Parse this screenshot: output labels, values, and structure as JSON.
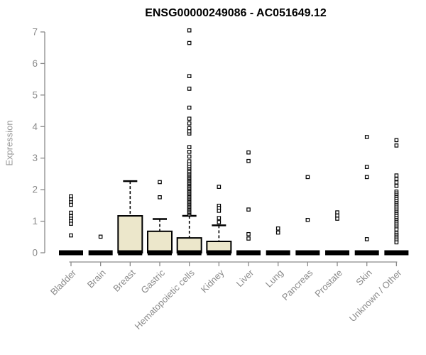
{
  "chart_data": {
    "type": "boxplot",
    "title": "ENSG00000249086 - AC051649.12",
    "ylabel": "Expression",
    "ylim": [
      0,
      7.3
    ],
    "yticks": [
      0,
      1,
      2,
      3,
      4,
      5,
      6,
      7
    ],
    "grid": false,
    "legend": "none",
    "categories": [
      "Bladder",
      "Brain",
      "Breast",
      "Gastric",
      "Hematopoietic cells",
      "Kidney",
      "Liver",
      "Lung",
      "Pancreas",
      "Prostate",
      "Skin",
      "Unknown / Other"
    ],
    "boxes": [
      {
        "category": "Bladder",
        "q1": 0,
        "median": 0,
        "q3": 0,
        "whisker_low": 0,
        "whisker_high": 0,
        "outliers": [
          1.79,
          1.69,
          1.6,
          1.52,
          1.27,
          1.16,
          1.08,
          1.0,
          0.92,
          0.55
        ]
      },
      {
        "category": "Brain",
        "q1": 0,
        "median": 0,
        "q3": 0,
        "whisker_low": 0,
        "whisker_high": 0,
        "outliers": [
          0.51
        ]
      },
      {
        "category": "Breast",
        "q1": 0,
        "median": 0,
        "q3": 1.17,
        "whisker_low": 0,
        "whisker_high": 2.27,
        "outliers": []
      },
      {
        "category": "Gastric",
        "q1": 0,
        "median": 0,
        "q3": 0.68,
        "whisker_low": 0,
        "whisker_high": 1.07,
        "outliers": [
          2.24,
          1.76
        ]
      },
      {
        "category": "Hematopoietic cells",
        "q1": 0,
        "median": 0,
        "q3": 0.47,
        "whisker_low": 0,
        "whisker_high": 1.17,
        "outliers": [
          1.22,
          1.26,
          1.3,
          1.34,
          1.38,
          1.42,
          1.46,
          1.5,
          1.54,
          1.58,
          1.62,
          1.66,
          1.7,
          1.74,
          1.78,
          1.82,
          1.86,
          1.9,
          1.94,
          1.98,
          2.02,
          2.06,
          2.1,
          2.14,
          2.18,
          2.22,
          2.26,
          2.3,
          2.34,
          2.38,
          2.42,
          2.46,
          2.5,
          2.55,
          2.6,
          2.65,
          2.7,
          2.76,
          2.82,
          2.9,
          3.05,
          3.2,
          3.35,
          3.78,
          3.85,
          3.95,
          4.1,
          4.25,
          4.6,
          5.2,
          5.6,
          6.65,
          7.05
        ]
      },
      {
        "category": "Kidney",
        "q1": 0,
        "median": 0,
        "q3": 0.36,
        "whisker_low": 0,
        "whisker_high": 0.87,
        "outliers": [
          2.09,
          1.49,
          1.42,
          1.33,
          1.1,
          0.97
        ]
      },
      {
        "category": "Liver",
        "q1": 0,
        "median": 0,
        "q3": 0,
        "whisker_low": 0,
        "whisker_high": 0,
        "outliers": [
          3.18,
          2.91,
          1.37,
          0.59,
          0.45
        ]
      },
      {
        "category": "Lung",
        "q1": 0,
        "median": 0,
        "q3": 0,
        "whisker_low": 0,
        "whisker_high": 0,
        "outliers": [
          0.77,
          0.64
        ]
      },
      {
        "category": "Pancreas",
        "q1": 0,
        "median": 0,
        "q3": 0,
        "whisker_low": 0,
        "whisker_high": 0,
        "outliers": [
          2.4,
          1.04
        ]
      },
      {
        "category": "Prostate",
        "q1": 0,
        "median": 0,
        "q3": 0,
        "whisker_low": 0,
        "whisker_high": 0,
        "outliers": [
          1.28,
          1.18,
          1.08
        ]
      },
      {
        "category": "Skin",
        "q1": 0,
        "median": 0,
        "q3": 0,
        "whisker_low": 0,
        "whisker_high": 0,
        "outliers": [
          3.67,
          2.72,
          2.4,
          0.43
        ]
      },
      {
        "category": "Unknown / Other",
        "q1": 0,
        "median": 0,
        "q3": 0,
        "whisker_low": 0,
        "whisker_high": 0,
        "outliers": [
          3.57,
          3.4,
          2.45,
          2.34,
          2.23,
          2.12,
          1.94,
          1.88,
          1.82,
          1.76,
          1.7,
          1.64,
          1.58,
          1.52,
          1.46,
          1.4,
          1.34,
          1.28,
          1.22,
          1.16,
          1.1,
          1.04,
          0.98,
          0.92,
          0.86,
          0.8,
          0.74,
          0.63,
          0.57,
          0.51,
          0.45,
          0.39,
          0.33
        ]
      }
    ],
    "colors": {
      "box_fill": "#ece7cb",
      "box_stroke": "#000000",
      "median": "#000000",
      "outlier_stroke": "#000000",
      "outlier_fill": "#ffffff",
      "axis": "#8a8a8a",
      "tick_label": "#8a8a8a",
      "title": "#000000",
      "background": "#ffffff"
    }
  }
}
